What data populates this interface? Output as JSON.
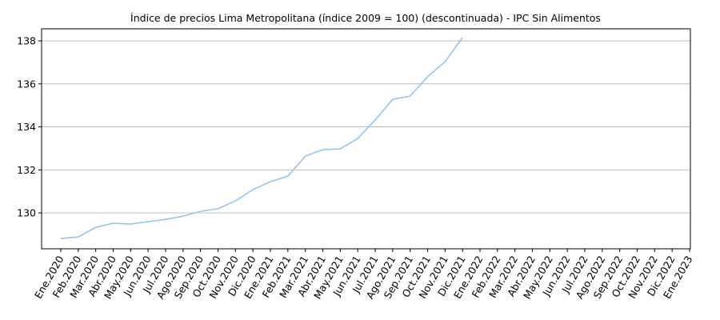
{
  "chart_data": {
    "type": "line",
    "title": "Índice de precios Lima Metropolitana (índice 2009 = 100) (descontinuada) - IPC Sin Alimentos",
    "categories": [
      "Ene.2020",
      "Feb.2020",
      "Mar.2020",
      "Abr.2020",
      "May.2020",
      "Jun.2020",
      "Jul.2020",
      "Ago.2020",
      "Sep.2020",
      "Oct.2020",
      "Nov.2020",
      "Dic.2020",
      "Ene.2021",
      "Feb.2021",
      "Mar.2021",
      "Abr.2021",
      "May.2021",
      "Jun.2021",
      "Jul.2021",
      "Ago.2021",
      "Sep.2021",
      "Oct.2021",
      "Nov.2021",
      "Dic.2021",
      "Ene.2022",
      "Feb.2022",
      "Mar.2022",
      "Abr.2022",
      "May.2022",
      "Jun.2022",
      "Jul.2022",
      "Ago.2022",
      "Sep.2022",
      "Oct.2022",
      "Nov.2022",
      "Dic.2022",
      "Ene.2023"
    ],
    "values": [
      128.81,
      128.88,
      129.33,
      129.52,
      129.48,
      129.59,
      129.7,
      129.85,
      130.07,
      130.19,
      130.56,
      131.08,
      131.45,
      131.71,
      132.64,
      132.94,
      132.98,
      133.46,
      134.32,
      135.28,
      135.43,
      136.33,
      137.03,
      138.15,
      null,
      null,
      null,
      null,
      null,
      null,
      null,
      null,
      null,
      null,
      null,
      null,
      null
    ],
    "color": "#92c5f0",
    "ylim": [
      128.33,
      138.56
    ],
    "yticks": [
      130,
      132,
      134,
      136,
      138
    ],
    "grid": true
  }
}
